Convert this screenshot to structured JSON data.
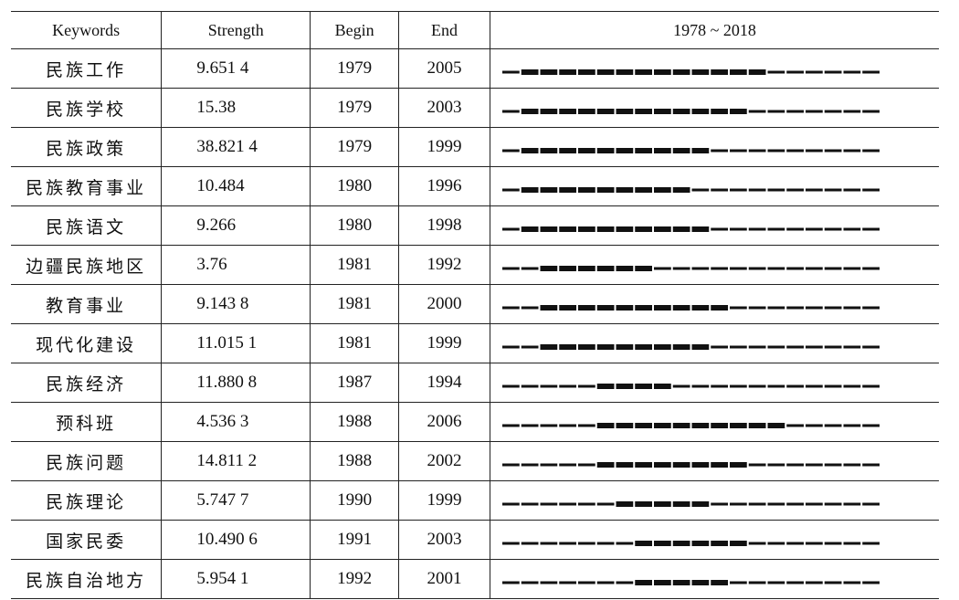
{
  "header": {
    "keywords": "Keywords",
    "strength": "Strength",
    "begin": "Begin",
    "end": "End",
    "timeline": {
      "start": 1978,
      "separator": "~",
      "end": 2018
    }
  },
  "rows": [
    {
      "keyword": "民族工作",
      "strength": "9.651 4",
      "begin": 1979,
      "end": 2005
    },
    {
      "keyword": "民族学校",
      "strength": "15.38",
      "begin": 1979,
      "end": 2003
    },
    {
      "keyword": "民族政策",
      "strength": "38.821 4",
      "begin": 1979,
      "end": 1999
    },
    {
      "keyword": "民族教育事业",
      "strength": "10.484",
      "begin": 1980,
      "end": 1996
    },
    {
      "keyword": "民族语文",
      "strength": "9.266",
      "begin": 1980,
      "end": 1998
    },
    {
      "keyword": "边疆民族地区",
      "strength": "3.76",
      "begin": 1981,
      "end": 1992
    },
    {
      "keyword": "教育事业",
      "strength": "9.143 8",
      "begin": 1981,
      "end": 2000
    },
    {
      "keyword": "现代化建设",
      "strength": "11.015 1",
      "begin": 1981,
      "end": 1999
    },
    {
      "keyword": "民族经济",
      "strength": "11.880 8",
      "begin": 1987,
      "end": 1994
    },
    {
      "keyword": "预科班",
      "strength": "4.536 3",
      "begin": 1988,
      "end": 2006
    },
    {
      "keyword": "民族问题",
      "strength": "14.811 2",
      "begin": 1988,
      "end": 2002
    },
    {
      "keyword": "民族理论",
      "strength": "5.747 7",
      "begin": 1990,
      "end": 1999
    },
    {
      "keyword": "国家民委",
      "strength": "10.490 6",
      "begin": 1991,
      "end": 2003
    },
    {
      "keyword": "民族自治地方",
      "strength": "5.954 1",
      "begin": 1992,
      "end": 2001
    }
  ]
}
